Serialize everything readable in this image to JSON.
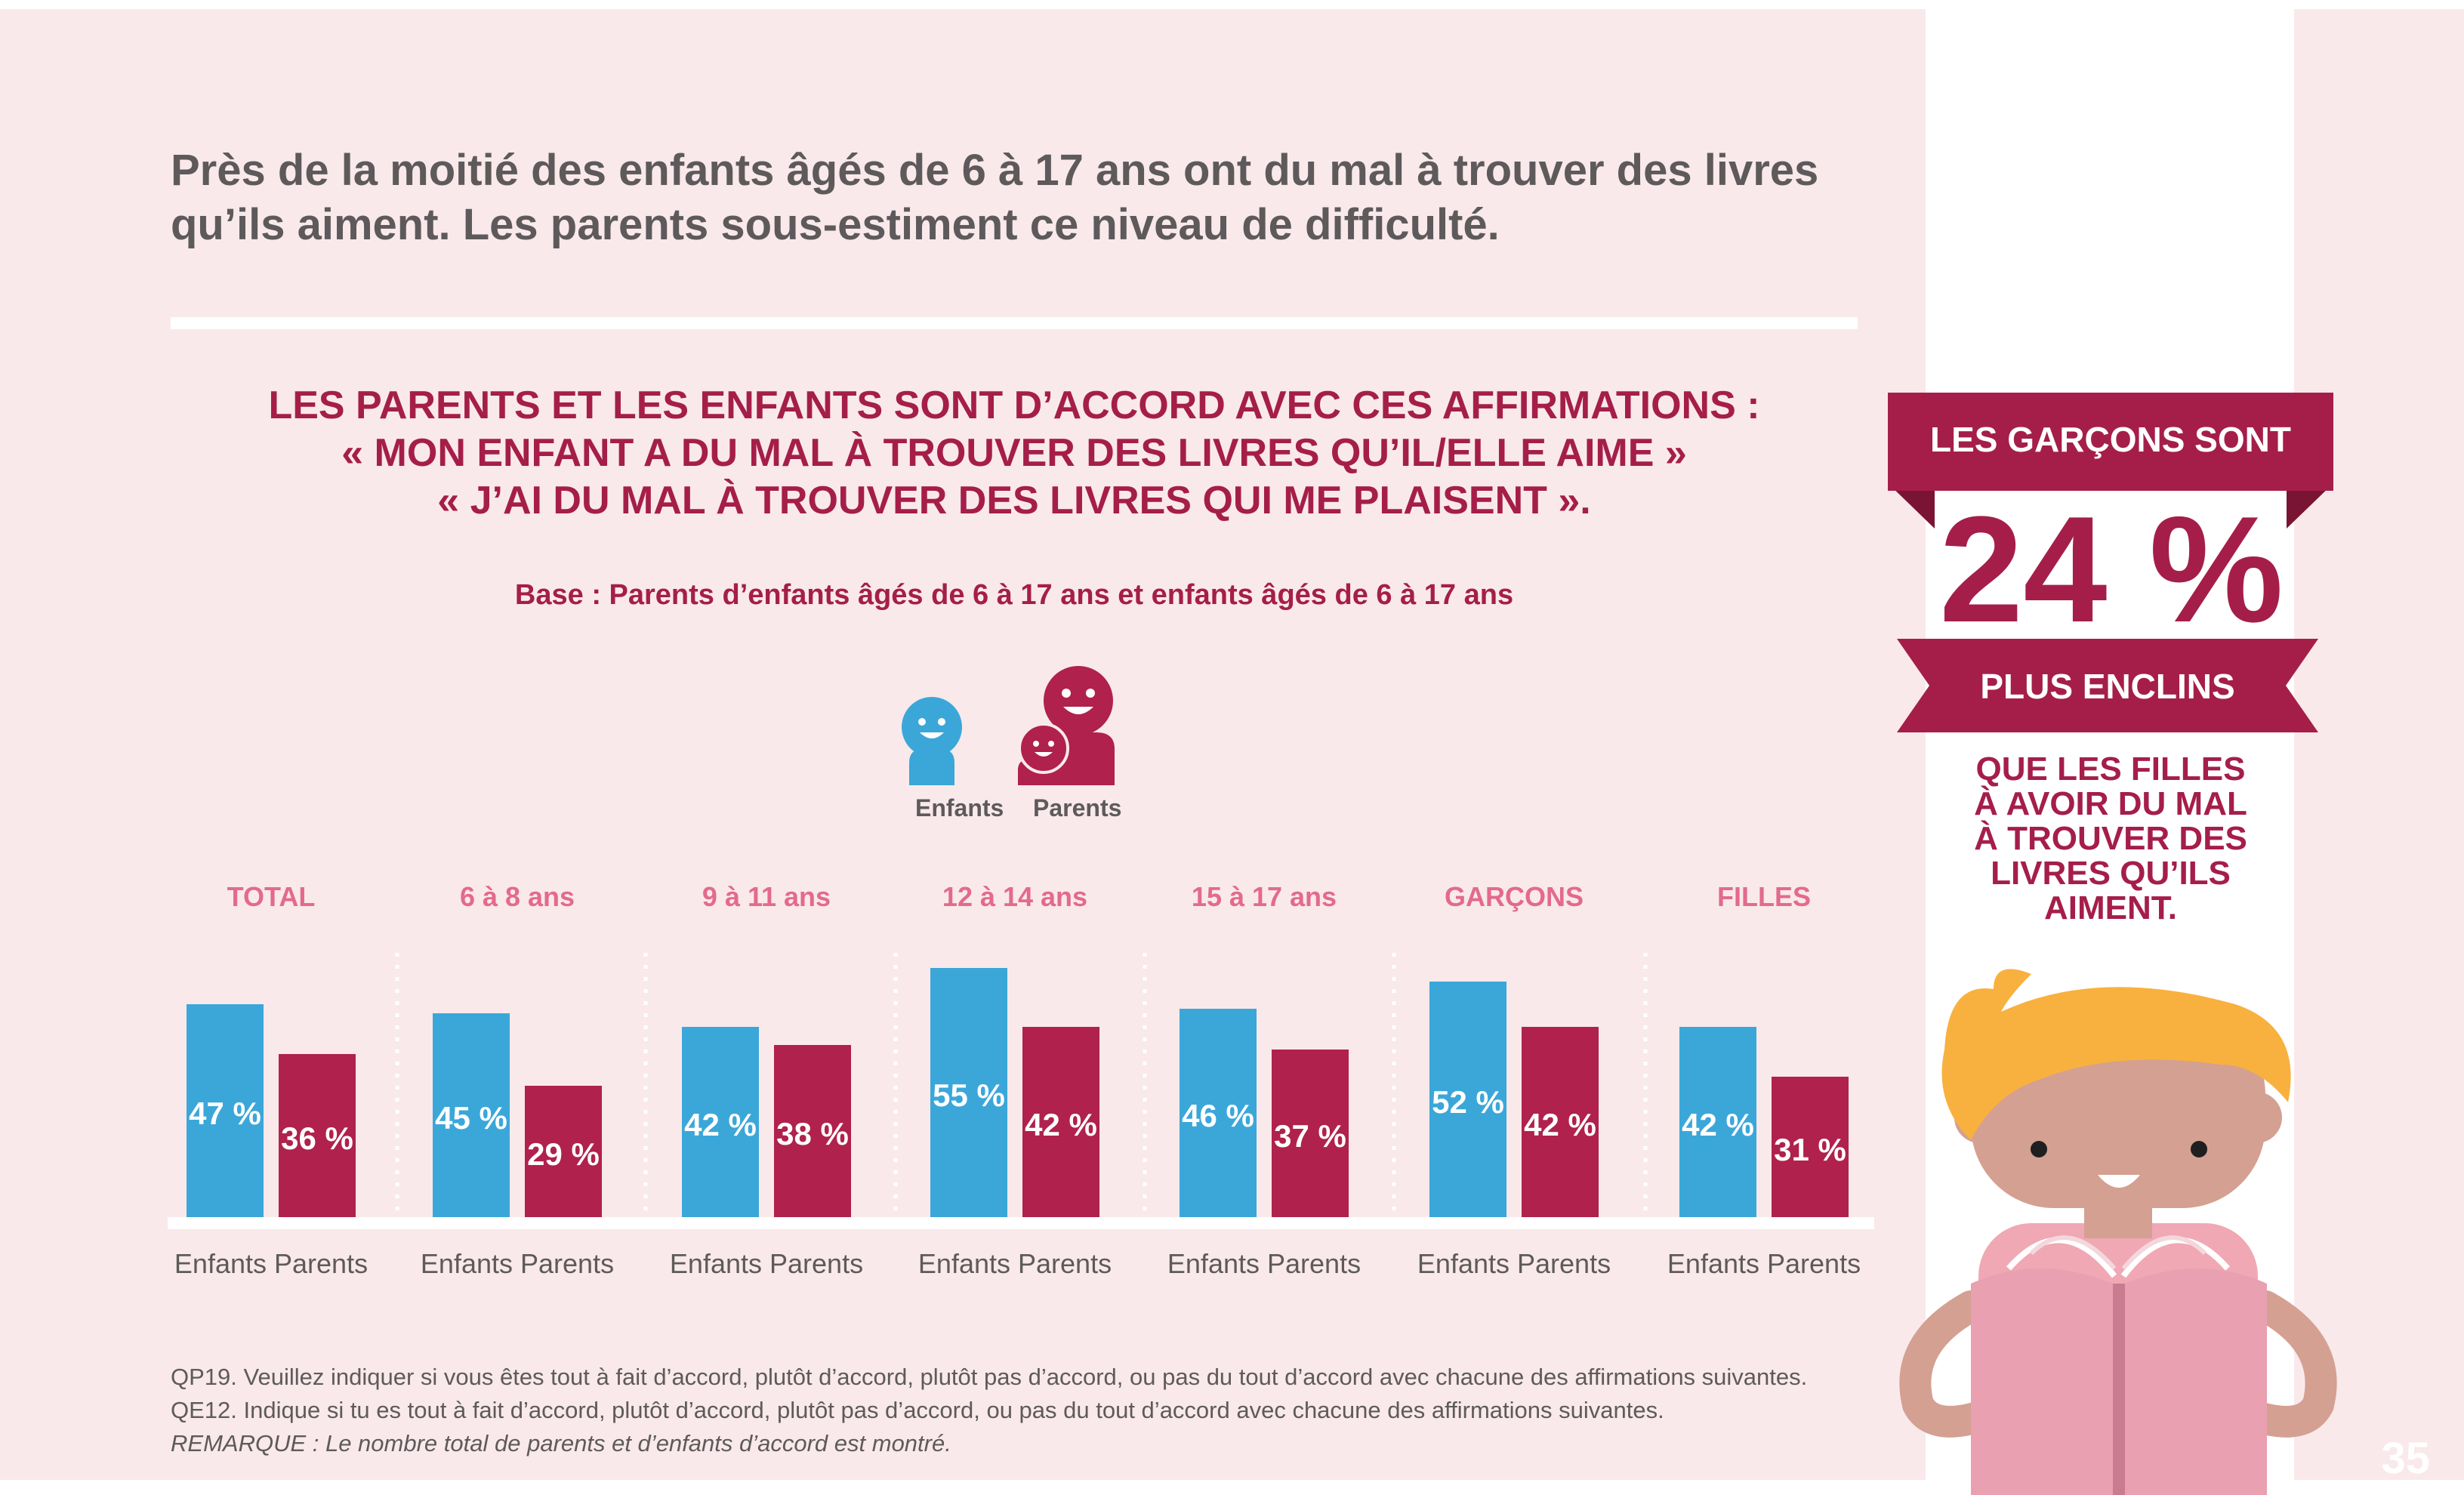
{
  "headline": {
    "line1": "Près de la moitié des enfants âgés de 6 à 17 ans ont du mal à trouver des livres",
    "line2": "qu’ils aiment. Les parents sous-estiment ce niveau de difficulté."
  },
  "subtitle": {
    "line1": "LES PARENTS ET LES ENFANTS SONT D’ACCORD AVEC CES AFFIRMATIONS :",
    "line2": "« MON ENFANT A DU MAL À TROUVER DES LIVRES QU’IL/ELLE AIME »",
    "line3": "« J’AI DU MAL À TROUVER DES LIVRES QUI ME PLAISENT »."
  },
  "base_note": "Base : Parents d’enfants âgés de 6 à 17 ans et enfants âgés de 6 à 17 ans",
  "legend": {
    "children": "Enfants",
    "parents": "Parents"
  },
  "chart_data": {
    "type": "bar",
    "categories": [
      "TOTAL",
      "6 à 8 ans",
      "9 à 11 ans",
      "12 à 14 ans",
      "15 à 17 ans",
      "GARÇONS",
      "FILLES"
    ],
    "series": [
      {
        "name": "Enfants",
        "values": [
          47,
          45,
          42,
          55,
          46,
          52,
          42
        ],
        "labels": [
          "47 %",
          "45 %",
          "42 %",
          "55 %",
          "46 %",
          "52 %",
          "42 %"
        ],
        "color": "#3ba7d9"
      },
      {
        "name": "Parents",
        "values": [
          36,
          29,
          38,
          42,
          37,
          42,
          31
        ],
        "labels": [
          "36 %",
          "29 %",
          "38 %",
          "42 %",
          "37 %",
          "42 %",
          "31 %"
        ],
        "color": "#b0214d"
      }
    ],
    "xtick_label": "Enfants Parents",
    "category_color": "#e36a8c",
    "ylim": [
      0,
      60
    ]
  },
  "footnotes": {
    "qp19": "QP19. Veuillez indiquer si vous êtes tout à fait d’accord, plutôt d’accord, plutôt pas d’accord, ou pas du tout d’accord avec chacune des affirmations suivantes.",
    "qe12": "QE12. Indique si tu es tout à fait d’accord, plutôt d’accord, plutôt pas d’accord, ou pas du tout d’accord avec chacune des affirmations suivantes.",
    "remark": "REMARQUE : Le nombre total de parents et d’enfants d’accord est montré."
  },
  "sidebar": {
    "ribbon_top": "LES GARÇONS SONT",
    "big_value": "24 %",
    "ribbon_bottom": "PLUS ENCLINS",
    "caption_lines": [
      "QUE LES FILLES",
      "À AVOIR DU MAL",
      "À TROUVER DES",
      "LIVRES QU’ILS",
      "AIMENT."
    ]
  },
  "page_number": "35",
  "colors": {
    "accent": "#a51e4a",
    "children": "#3ba7d9",
    "parents": "#b0214d",
    "background": "#f9e9eb"
  }
}
